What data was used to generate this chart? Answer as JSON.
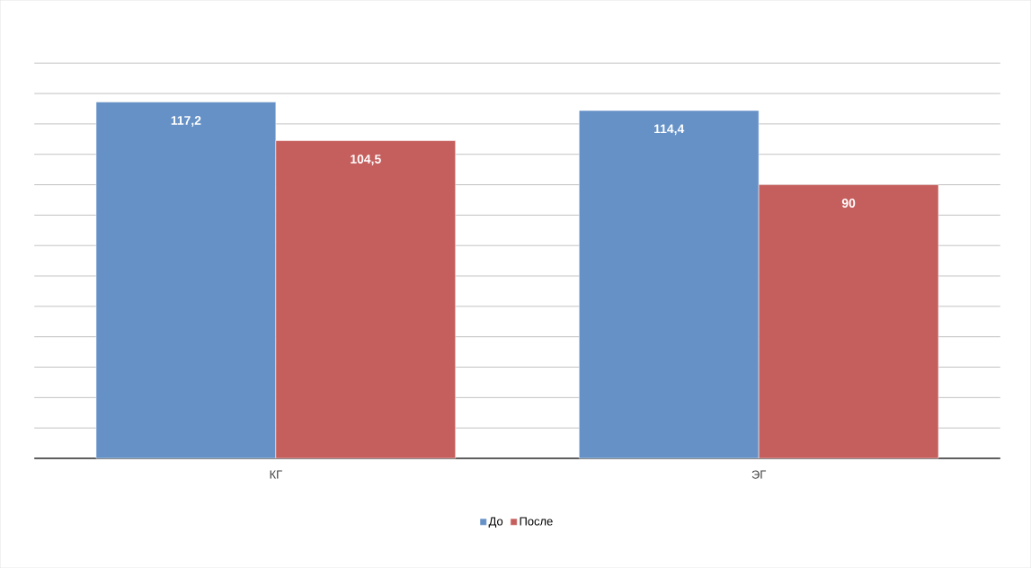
{
  "chart_data": {
    "type": "bar",
    "categories": [
      "КГ",
      "ЭГ"
    ],
    "series": [
      {
        "name": "До",
        "color": "#6591c6",
        "values": [
          117.2,
          114.4
        ],
        "value_labels": [
          "117,2",
          "114,4"
        ]
      },
      {
        "name": "После",
        "color": "#c55f5d",
        "values": [
          104.5,
          90
        ],
        "value_labels": [
          "104,5",
          "90"
        ]
      }
    ],
    "tick_labels": "x",
    "grid": "y",
    "legend": "bottom"
  }
}
